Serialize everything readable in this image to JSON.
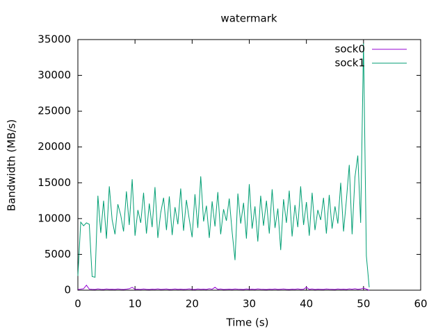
{
  "chart_data": {
    "type": "line",
    "title": "watermark",
    "x_label": "Time (s)",
    "y_label": "Bandwidth (MB/s)",
    "xlim": [
      0,
      60
    ],
    "xticks": [
      0,
      10,
      20,
      30,
      40,
      50,
      60
    ],
    "ylim": [
      0,
      35000
    ],
    "yticks": [
      0,
      5000,
      10000,
      15000,
      20000,
      25000,
      30000,
      35000
    ],
    "legend": "top-right",
    "grid": false,
    "x": [
      0,
      0.5,
      1,
      1.5,
      2,
      2.5,
      3,
      3.5,
      4,
      4.5,
      5,
      5.5,
      6,
      6.5,
      7,
      7.5,
      8,
      8.5,
      9,
      9.5,
      10,
      10.5,
      11,
      11.5,
      12,
      12.5,
      13,
      13.5,
      14,
      14.5,
      15,
      15.5,
      16,
      16.5,
      17,
      17.5,
      18,
      18.5,
      19,
      19.5,
      20,
      20.5,
      21,
      21.5,
      22,
      22.5,
      23,
      23.5,
      24,
      24.5,
      25,
      25.5,
      26,
      26.5,
      27,
      27.5,
      28,
      28.5,
      29,
      29.5,
      30,
      30.5,
      31,
      31.5,
      32,
      32.5,
      33,
      33.5,
      34,
      34.5,
      35,
      35.5,
      36,
      36.5,
      37,
      37.5,
      38,
      38.5,
      39,
      39.5,
      40,
      40.5,
      41,
      41.5,
      42,
      42.5,
      43,
      43.5,
      44,
      44.5,
      45,
      45.5,
      46,
      46.5,
      47,
      47.5,
      48,
      48.5,
      49,
      49.5,
      50,
      50.5,
      51
    ],
    "series": [
      {
        "name": "sock0",
        "color": "#9400d3",
        "values": [
          100,
          150,
          200,
          700,
          150,
          120,
          100,
          180,
          130,
          100,
          160,
          120,
          140,
          110,
          170,
          130,
          100,
          150,
          200,
          400,
          120,
          140,
          110,
          160,
          130,
          100,
          150,
          120,
          180,
          110,
          140,
          160,
          100,
          130,
          170,
          120,
          150,
          110,
          140,
          180,
          120,
          100,
          160,
          130,
          150,
          110,
          200,
          140,
          400,
          120,
          160,
          100,
          130,
          150,
          110,
          170,
          140,
          120,
          100,
          160,
          130,
          150,
          110,
          180,
          140,
          120,
          100,
          150,
          130,
          170,
          110,
          140,
          160,
          120,
          100,
          150,
          130,
          180,
          110,
          140,
          400,
          120,
          160,
          100,
          150,
          130,
          110,
          170,
          140,
          120,
          100,
          160,
          130,
          150,
          110,
          180,
          140,
          200,
          120,
          160,
          300,
          150,
          0
        ]
      },
      {
        "name": "sock1",
        "color": "#009e73",
        "values": [
          2000,
          9500,
          9000,
          9400,
          9200,
          1900,
          1800,
          13200,
          8000,
          12500,
          7200,
          14500,
          9800,
          7800,
          12000,
          10500,
          8200,
          13800,
          9100,
          15500,
          7600,
          11200,
          9400,
          13600,
          7900,
          12100,
          8800,
          14400,
          7300,
          10800,
          12900,
          8400,
          13100,
          7700,
          11600,
          9200,
          14200,
          8300,
          12600,
          9900,
          7400,
          13400,
          8700,
          15900,
          9600,
          11800,
          7300,
          12400,
          8900,
          13700,
          7800,
          11300,
          9700,
          12800,
          8100,
          4200,
          13500,
          9300,
          12200,
          7200,
          14800,
          8600,
          11700,
          6800,
          13200,
          9000,
          12500,
          7900,
          14100,
          8700,
          11400,
          5600,
          12700,
          9400,
          13900,
          7500,
          11900,
          8800,
          14500,
          9100,
          12300,
          7600,
          13600,
          8400,
          11200,
          9800,
          12900,
          7900,
          13300,
          8600,
          11700,
          9300,
          15000,
          8200,
          12600,
          17500,
          7800,
          15800,
          18800,
          9400,
          34500,
          4800,
          400
        ]
      }
    ]
  }
}
